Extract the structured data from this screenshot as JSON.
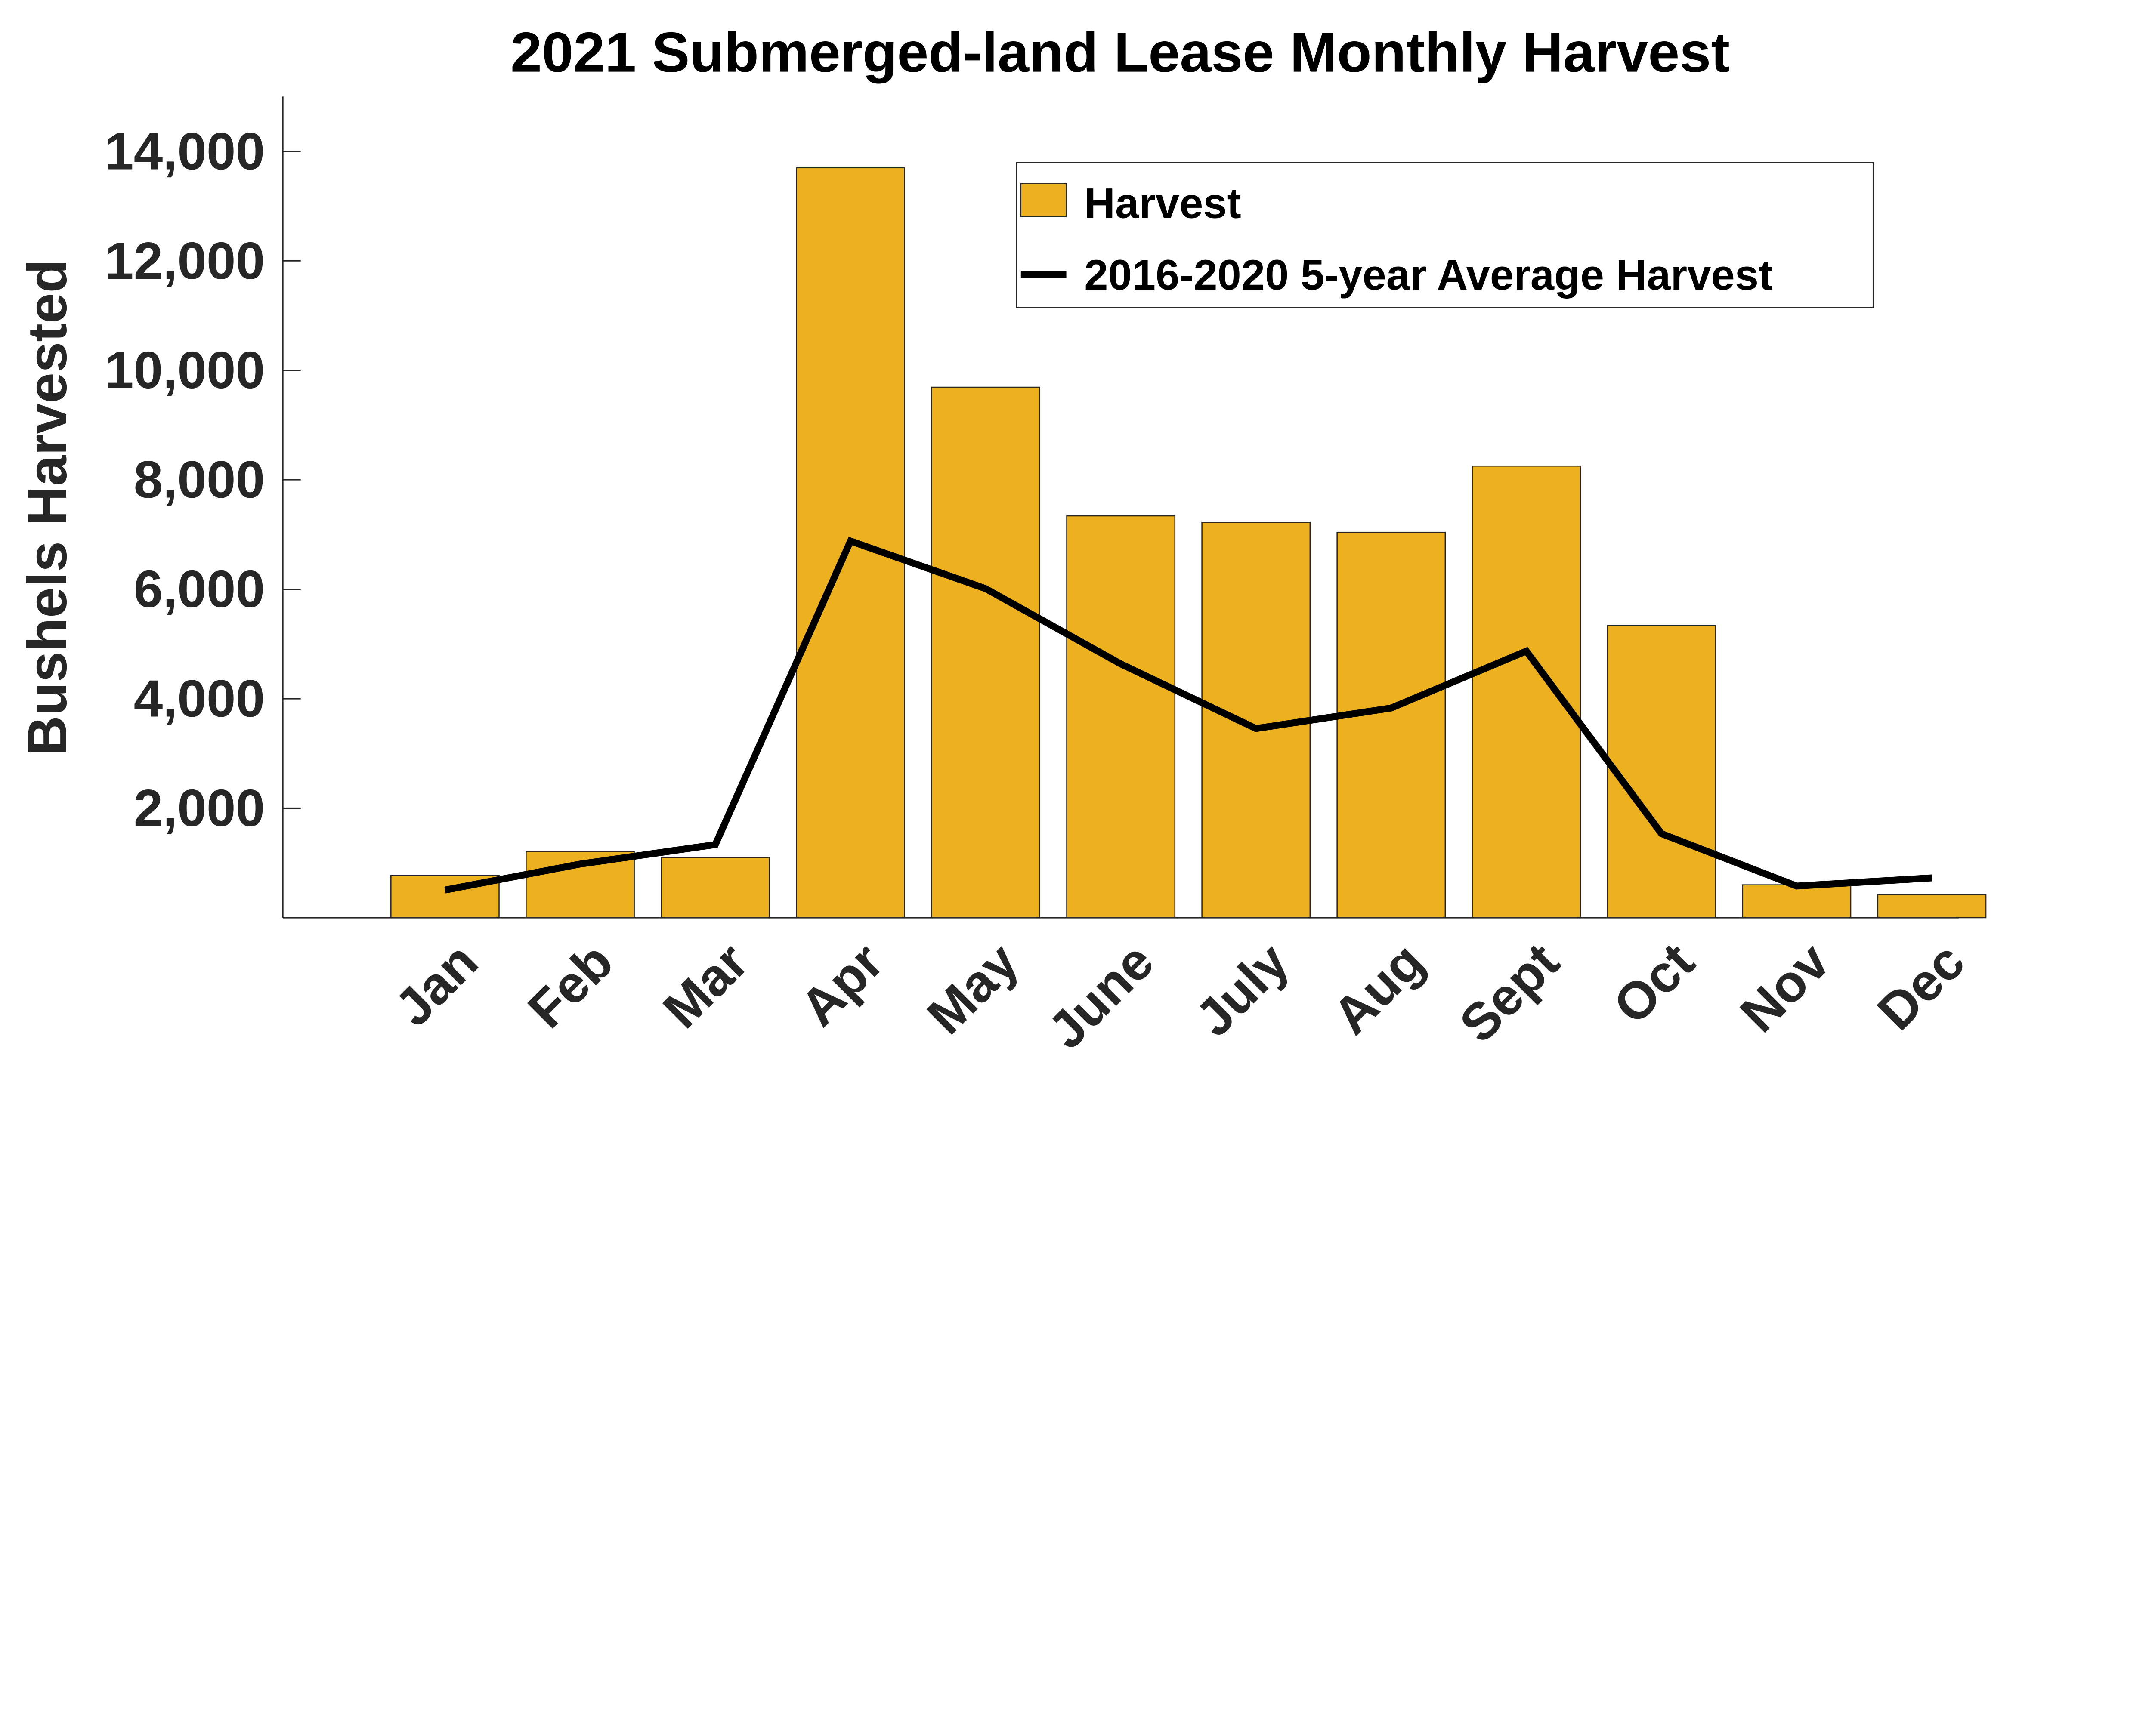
{
  "chart_data": {
    "type": "bar",
    "title": "2021 Submerged-land Lease Monthly Harvest",
    "xlabel": "",
    "ylabel": "Bushels Harvested",
    "categories": [
      "Jan",
      "Feb",
      "Mar",
      "Apr",
      "May",
      "June",
      "July",
      "Aug",
      "Sept",
      "Oct",
      "Nov",
      "Dec"
    ],
    "series": [
      {
        "name": "Harvest",
        "type": "bar",
        "color": "#EDB120",
        "values": [
          770,
          1210,
          1100,
          13700,
          9690,
          7340,
          7220,
          7040,
          8250,
          5340,
          600,
          425
        ]
      },
      {
        "name": "2016-2020 5-year Average Harvest",
        "type": "line",
        "color": "#000000",
        "values": [
          505,
          980,
          1335,
          6880,
          6010,
          4635,
          3455,
          3830,
          4870,
          1535,
          578,
          727
        ]
      }
    ],
    "ylim": [
      0,
      15000
    ],
    "yticks": [
      2000,
      4000,
      6000,
      8000,
      10000,
      12000,
      14000
    ],
    "ytick_labels": [
      "2,000",
      "4,000",
      "6,000",
      "8,000",
      "10,000",
      "12,000",
      "14,000"
    ],
    "grid": false,
    "legend_placement": "top-right"
  }
}
